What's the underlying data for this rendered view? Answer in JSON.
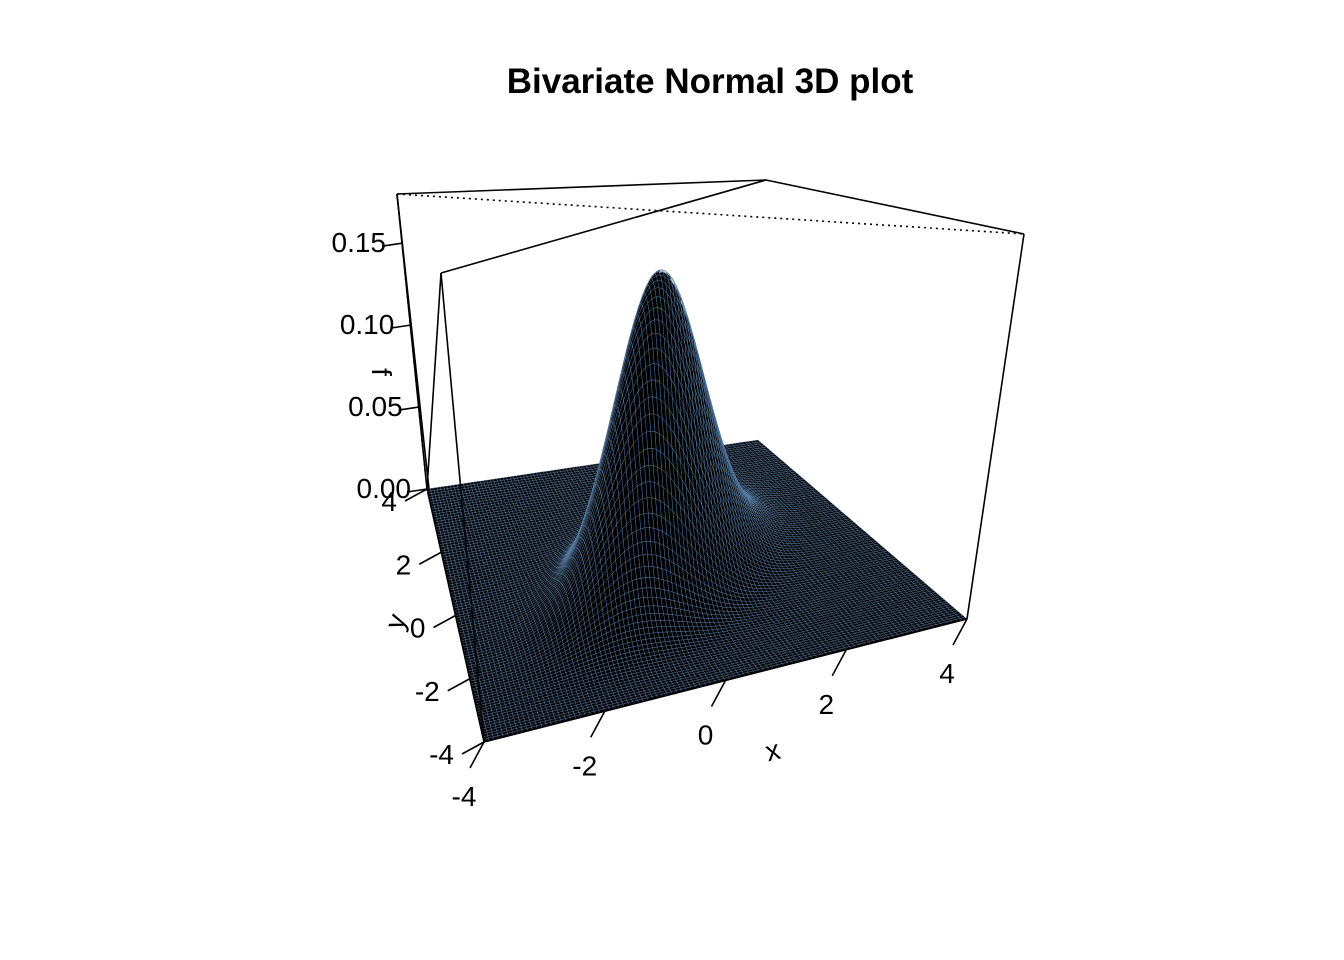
{
  "chart_data": {
    "type": "surface3d",
    "title": "Bivariate Normal 3D plot",
    "xlabel": "x",
    "ylabel": "y",
    "zlabel": "f",
    "xlim": [
      -4,
      4
    ],
    "ylim": [
      -4,
      4
    ],
    "zlim": [
      0,
      0.18
    ],
    "x_ticks": [
      -4,
      -2,
      0,
      2,
      4
    ],
    "x_tick_labels": [
      "-4",
      "-2",
      "0",
      "2",
      "4"
    ],
    "y_ticks": [
      -4,
      -2,
      0,
      2,
      4
    ],
    "y_tick_labels": [
      "-4",
      "-2",
      "0",
      "2",
      "4"
    ],
    "z_ticks": [
      0,
      0.05,
      0.1,
      0.15
    ],
    "z_tick_labels": [
      "0.00",
      "0.05",
      "0.10",
      "0.15"
    ],
    "surface": {
      "function": "bivariate normal density",
      "mean_x": 0,
      "mean_y": 0,
      "sd_x": 1,
      "sd_y": 1,
      "correlation": 0.5,
      "peak_value": 0.1838,
      "grid_points": 101
    },
    "colors": {
      "surface_fill": "#000000",
      "mesh_lines": "#5a7fa8",
      "box": "#000000"
    },
    "box": true,
    "grid": false
  }
}
